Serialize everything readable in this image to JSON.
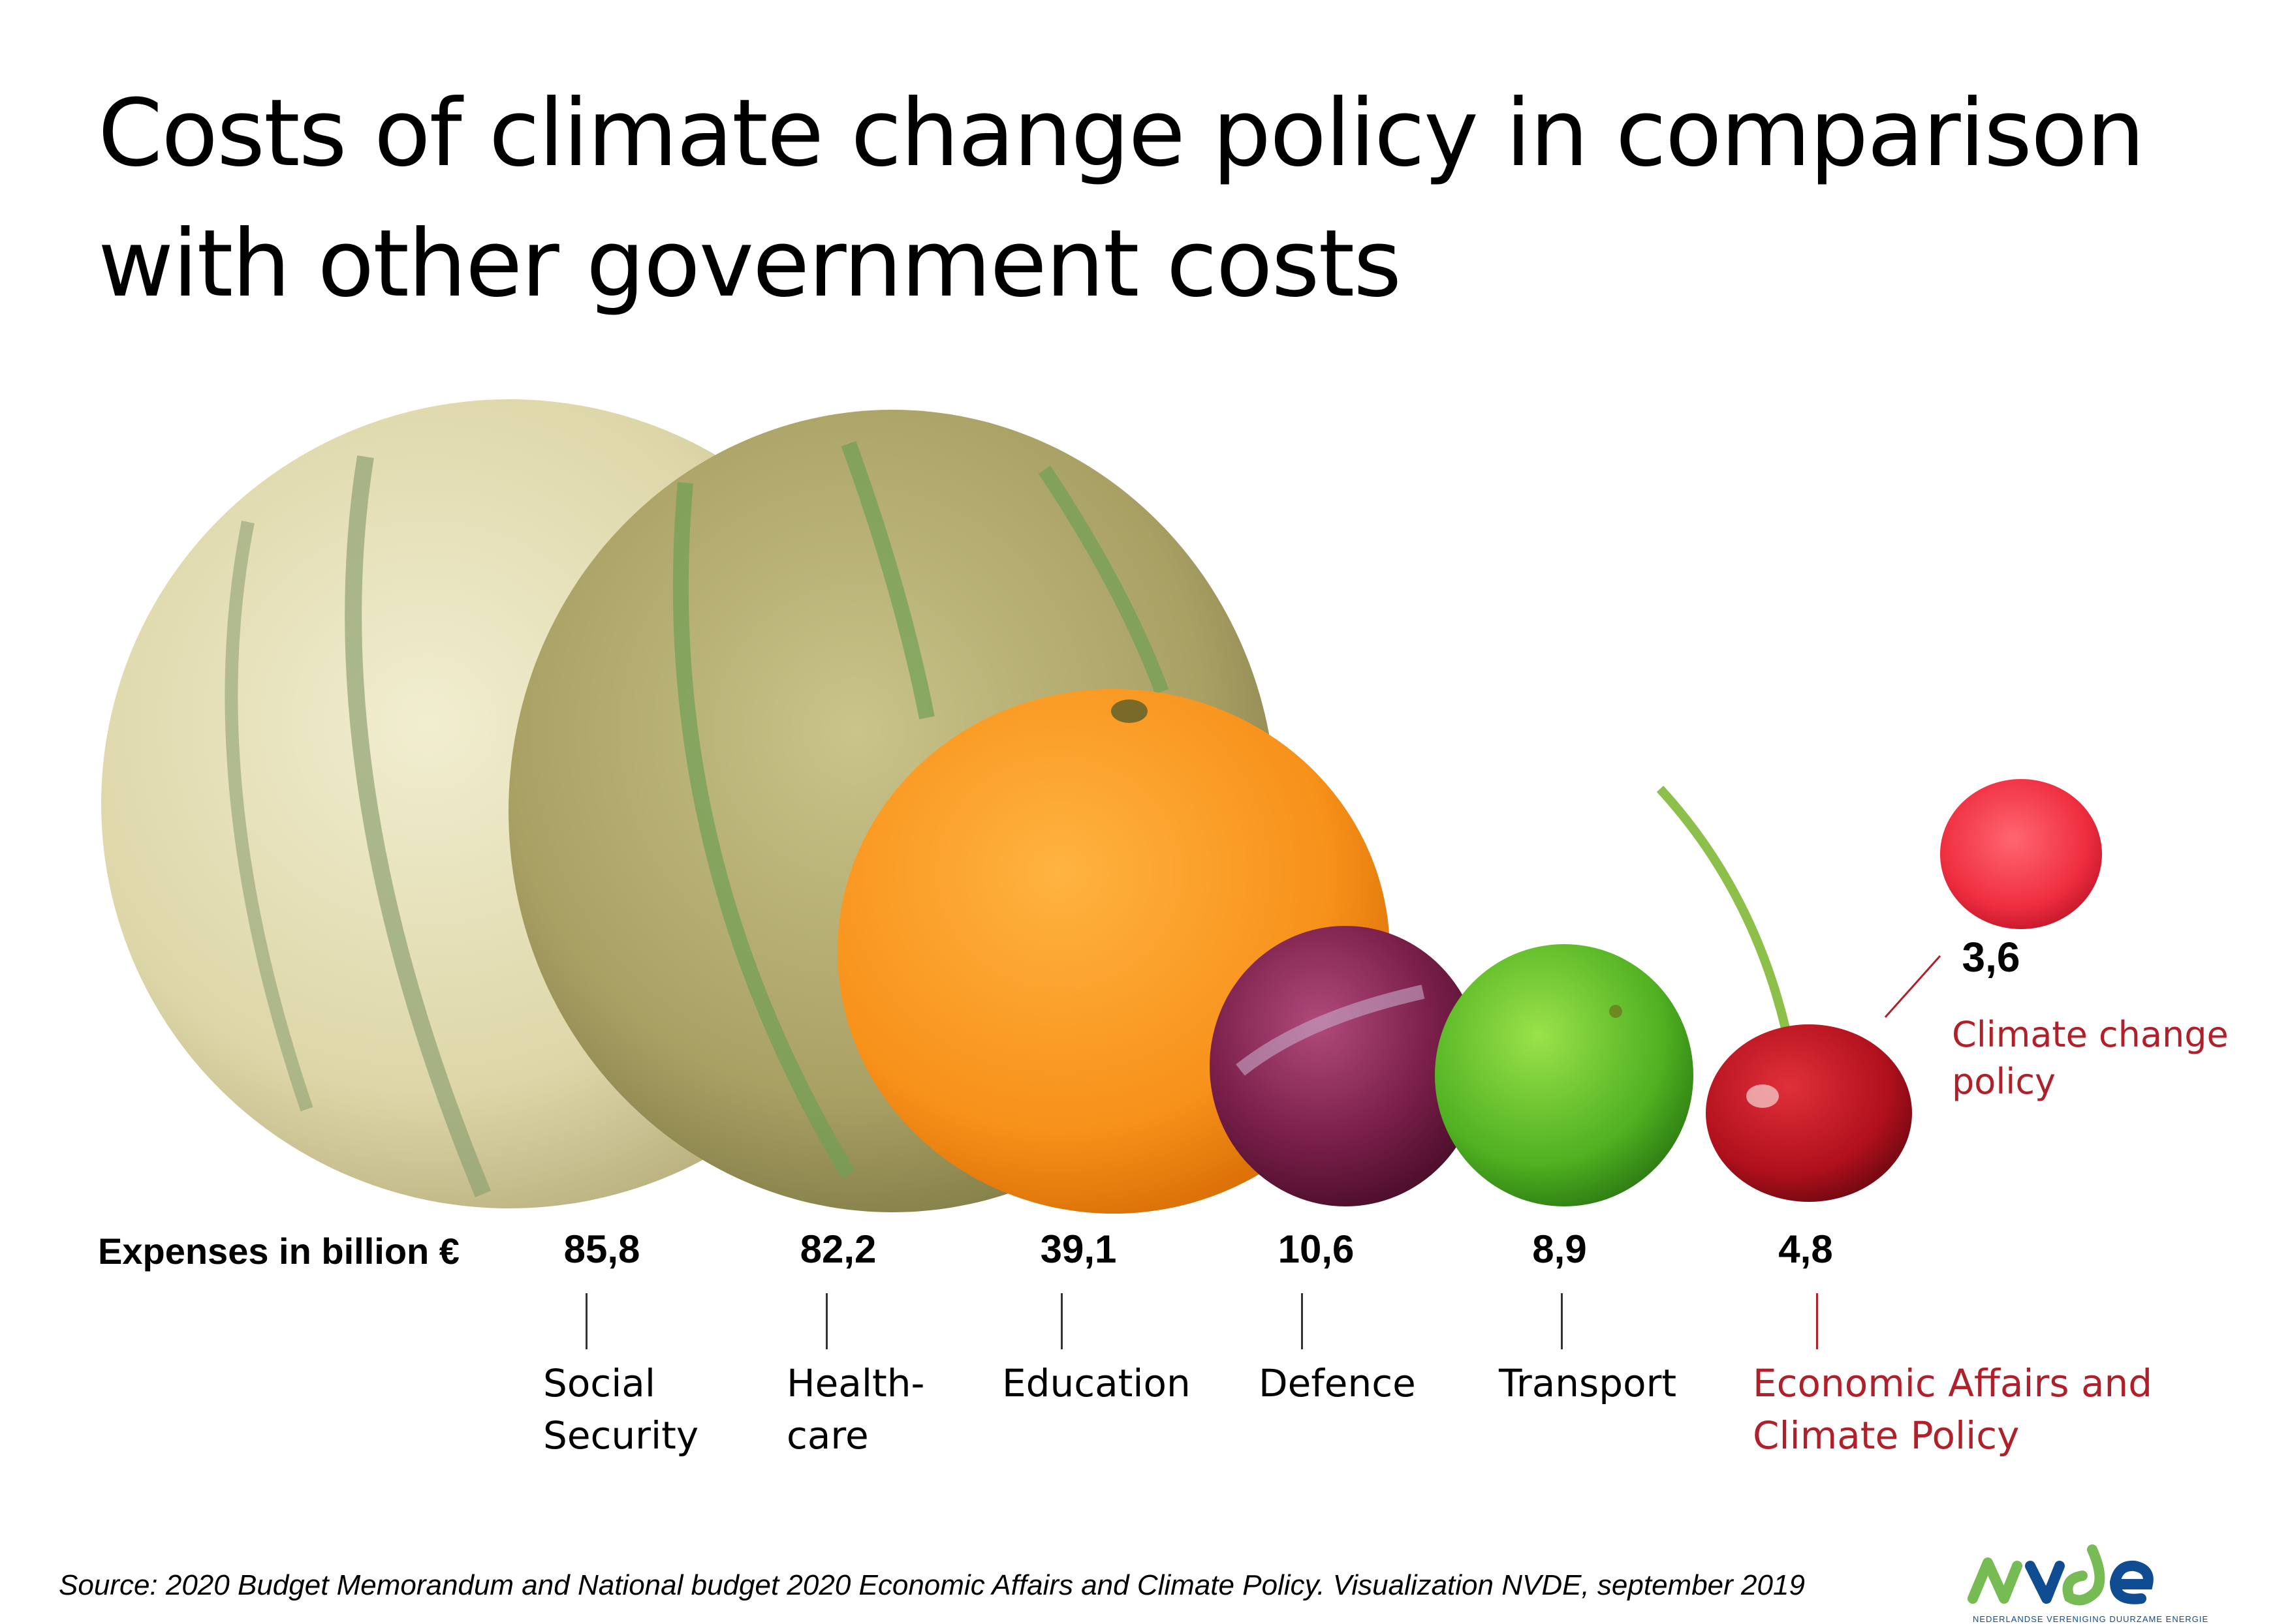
{
  "title": "Costs of climate change policy in comparison with other government costs",
  "expenses_label": "Expenses in billion €",
  "source": "Source: 2020 Budget Memorandum and National budget 2020 Economic Affairs and Climate Policy. Visualization NVDE, september 2019",
  "logo": {
    "text": "nvde",
    "subtitle": "NEDERLANDSE VERENIGING DUURZAME ENERGIE"
  },
  "colors": {
    "highlight": "#b0202a",
    "logo_green": "#77bb55",
    "logo_blue": "#0f4c92"
  },
  "chart_data": {
    "type": "bar",
    "title": "Costs of climate change policy in comparison with other government costs",
    "ylabel": "Expenses in billion €",
    "categories": [
      "Social Security",
      "Healthcare",
      "Education",
      "Defence",
      "Transport",
      "Economic Affairs and Climate Policy",
      "Climate change policy"
    ],
    "values": [
      85.8,
      82.2,
      39.1,
      10.6,
      8.9,
      4.8,
      3.6
    ],
    "value_labels": [
      "85,8",
      "82,2",
      "39,1",
      "10,6",
      "8,9",
      "4,8",
      "3,6"
    ],
    "label_lines": [
      [
        "Social",
        "Security"
      ],
      [
        "Health-",
        "care"
      ],
      [
        "Education"
      ],
      [
        "Defence"
      ],
      [
        "Transport"
      ],
      [
        "Economic Affairs and",
        "Climate Policy"
      ],
      [
        "Climate change",
        "policy"
      ]
    ],
    "fruits": [
      "cantaloupe",
      "melon",
      "orange",
      "plum",
      "lime",
      "cherry",
      "raspberry"
    ]
  }
}
